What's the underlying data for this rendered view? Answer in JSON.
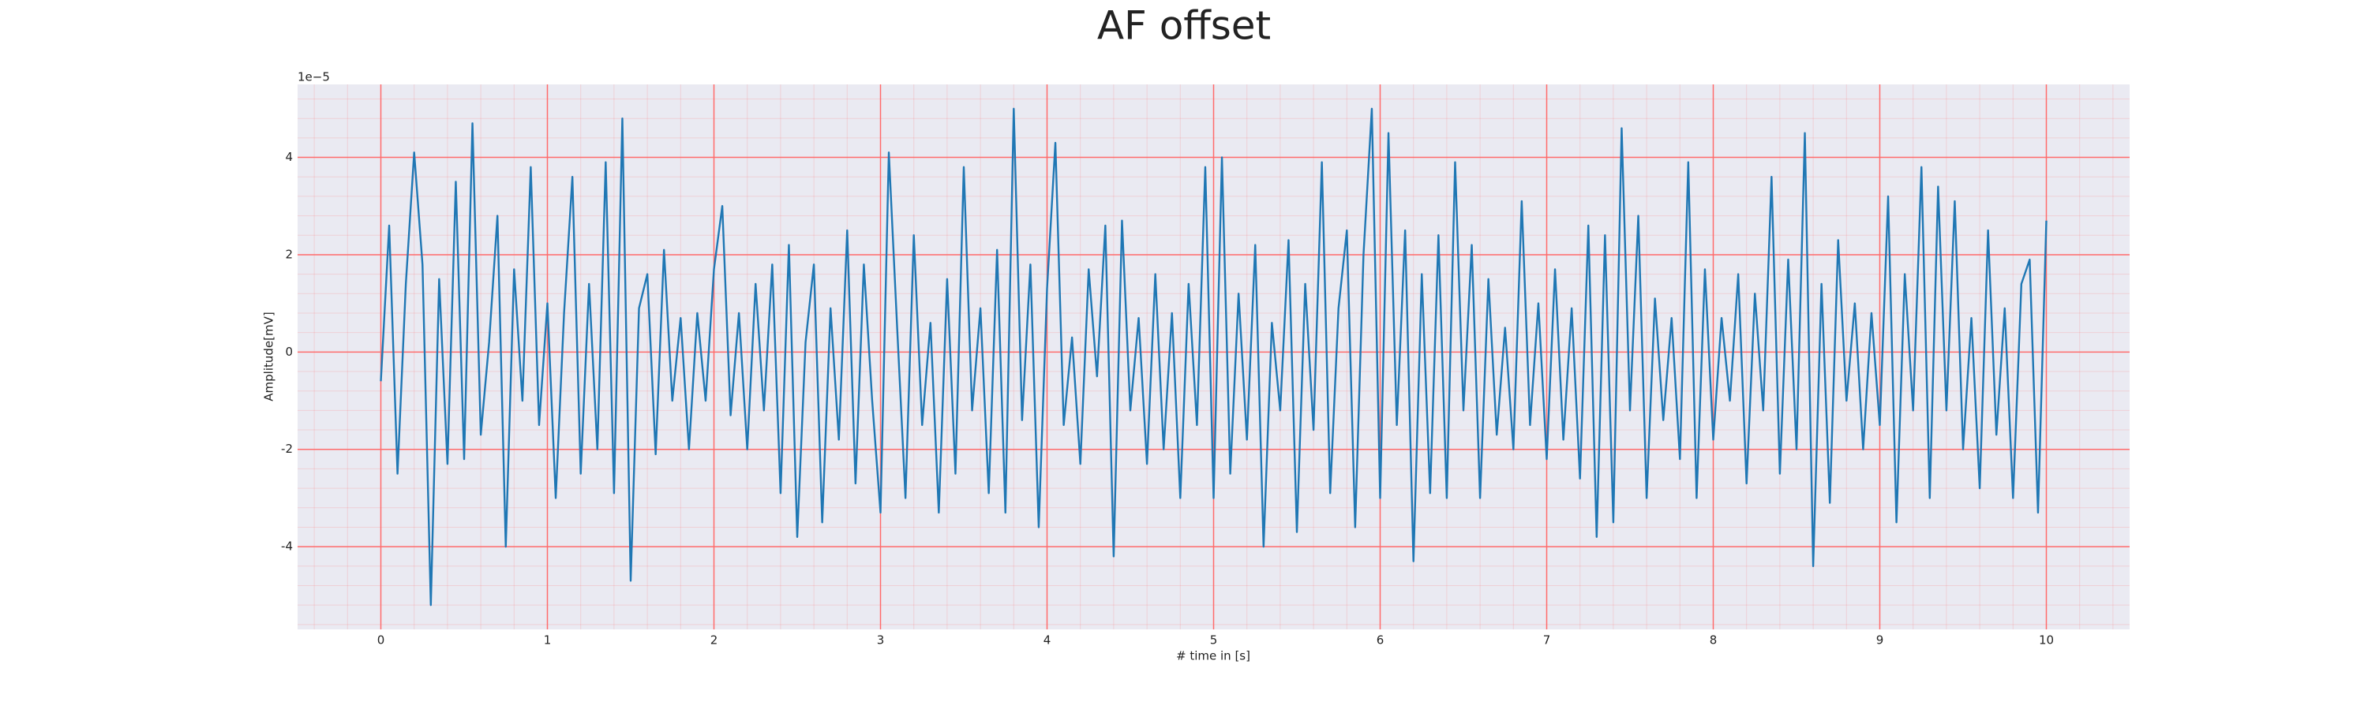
{
  "chart_data": {
    "type": "line",
    "title": "AF offset",
    "x_label": "# time in [s]",
    "y_label": "Amplitude[mV]",
    "y_offset_label": "1e−5",
    "x": [
      0,
      0.05,
      0.1,
      0.15,
      0.2,
      0.25,
      0.3,
      0.35,
      0.4,
      0.45,
      0.5,
      0.55,
      0.6,
      0.65,
      0.7,
      0.75,
      0.8,
      0.85,
      0.9,
      0.95,
      1,
      1.05,
      1.1,
      1.15,
      1.2,
      1.25,
      1.3,
      1.35,
      1.4,
      1.45,
      1.5,
      1.55,
      1.6,
      1.65,
      1.7,
      1.75,
      1.8,
      1.85,
      1.9,
      1.95,
      2,
      2.05,
      2.1,
      2.15,
      2.2,
      2.25,
      2.3,
      2.35,
      2.4,
      2.45,
      2.5,
      2.55,
      2.6,
      2.65,
      2.7,
      2.75,
      2.8,
      2.85,
      2.9,
      2.95,
      3,
      3.05,
      3.1,
      3.15,
      3.2,
      3.25,
      3.3,
      3.35,
      3.4,
      3.45,
      3.5,
      3.55,
      3.6,
      3.65,
      3.7,
      3.75,
      3.8,
      3.85,
      3.9,
      3.95,
      4,
      4.05,
      4.1,
      4.15,
      4.2,
      4.25,
      4.3,
      4.35,
      4.4,
      4.45,
      4.5,
      4.55,
      4.6,
      4.65,
      4.7,
      4.75,
      4.8,
      4.85,
      4.9,
      4.95,
      5,
      5.05,
      5.1,
      5.15,
      5.2,
      5.25,
      5.3,
      5.35,
      5.4,
      5.45,
      5.5,
      5.55,
      5.6,
      5.65,
      5.7,
      5.75,
      5.8,
      5.85,
      5.9,
      5.95,
      6,
      6.05,
      6.1,
      6.15,
      6.2,
      6.25,
      6.3,
      6.35,
      6.4,
      6.45,
      6.5,
      6.55,
      6.6,
      6.65,
      6.7,
      6.75,
      6.8,
      6.85,
      6.9,
      6.95,
      7,
      7.05,
      7.1,
      7.15,
      7.2,
      7.25,
      7.3,
      7.35,
      7.4,
      7.45,
      7.5,
      7.55,
      7.6,
      7.65,
      7.7,
      7.75,
      7.8,
      7.85,
      7.9,
      7.95,
      8,
      8.05,
      8.1,
      8.15,
      8.2,
      8.25,
      8.3,
      8.35,
      8.4,
      8.45,
      8.5,
      8.55,
      8.6,
      8.65,
      8.7,
      8.75,
      8.8,
      8.85,
      8.9,
      8.95,
      9,
      9.05,
      9.1,
      9.15,
      9.2,
      9.25,
      9.3,
      9.35,
      9.4,
      9.45,
      9.5,
      9.55,
      9.6,
      9.65,
      9.7,
      9.75,
      9.8,
      9.85,
      9.9,
      9.95,
      10
    ],
    "series": [
      {
        "color": "#1f77b4",
        "values": [
          -0.6,
          2.6,
          -2.5,
          1.4,
          4.1,
          1.8,
          -5.2,
          1.5,
          -2.3,
          3.5,
          -2.2,
          4.7,
          -1.7,
          0.2,
          2.8,
          -4.0,
          1.7,
          -1.0,
          3.8,
          -1.5,
          1.0,
          -3.0,
          0.8,
          3.6,
          -2.5,
          1.4,
          -2.0,
          3.9,
          -2.9,
          4.8,
          -4.7,
          0.9,
          1.6,
          -2.1,
          2.1,
          -1.0,
          0.7,
          -2.0,
          0.8,
          -1.0,
          1.7,
          3.0,
          -1.3,
          0.8,
          -2.0,
          1.4,
          -1.2,
          1.8,
          -2.9,
          2.2,
          -3.8,
          0.2,
          1.8,
          -3.5,
          0.9,
          -1.8,
          2.5,
          -2.7,
          1.8,
          -1.0,
          -3.3,
          4.1,
          0.5,
          -3.0,
          2.4,
          -1.5,
          0.6,
          -3.3,
          1.5,
          -2.5,
          3.8,
          -1.2,
          0.9,
          -2.9,
          2.1,
          -3.3,
          5.0,
          -1.4,
          1.8,
          -3.6,
          1.3,
          4.3,
          -1.5,
          0.3,
          -2.3,
          1.7,
          -0.5,
          2.6,
          -4.2,
          2.7,
          -1.2,
          0.7,
          -2.3,
          1.6,
          -2.0,
          0.8,
          -3.0,
          1.4,
          -1.5,
          3.8,
          -3.0,
          4.0,
          -2.5,
          1.2,
          -1.8,
          2.2,
          -4.0,
          0.6,
          -1.2,
          2.3,
          -3.7,
          1.4,
          -1.6,
          3.9,
          -2.9,
          0.9,
          2.5,
          -3.6,
          2.0,
          5.0,
          -3.0,
          4.5,
          -1.5,
          2.5,
          -4.3,
          1.6,
          -2.9,
          2.4,
          -3.0,
          3.9,
          -1.2,
          2.2,
          -3.0,
          1.5,
          -1.7,
          0.5,
          -2.0,
          3.1,
          -1.5,
          1.0,
          -2.2,
          1.7,
          -1.8,
          0.9,
          -2.6,
          2.6,
          -3.8,
          2.4,
          -3.5,
          4.6,
          -1.2,
          2.8,
          -3.0,
          1.1,
          -1.4,
          0.7,
          -2.2,
          3.9,
          -3.0,
          1.7,
          -1.8,
          0.7,
          -1.0,
          1.6,
          -2.7,
          1.2,
          -1.2,
          3.6,
          -2.5,
          1.9,
          -2.0,
          4.5,
          -4.4,
          1.4,
          -3.1,
          2.3,
          -1.0,
          1.0,
          -2.0,
          0.8,
          -1.5,
          3.2,
          -3.5,
          1.6,
          -1.2,
          3.8,
          -3.0,
          3.4,
          -1.2,
          3.1,
          -2.0,
          0.7,
          -2.8,
          2.5,
          -1.7,
          0.9,
          -3.0,
          1.4,
          1.9,
          -3.3,
          2.7
        ]
      }
    ],
    "xlim": [
      -0.5,
      10.5
    ],
    "ylim": [
      -5.7,
      5.5
    ],
    "xticks": [
      0,
      1,
      2,
      3,
      4,
      5,
      6,
      7,
      8,
      9,
      10
    ],
    "yticks": [
      -4,
      -2,
      0,
      2,
      4
    ],
    "grid": true,
    "minor_grid": true,
    "grid_color": "#ff6b6b",
    "background": "#eaeaf2"
  }
}
